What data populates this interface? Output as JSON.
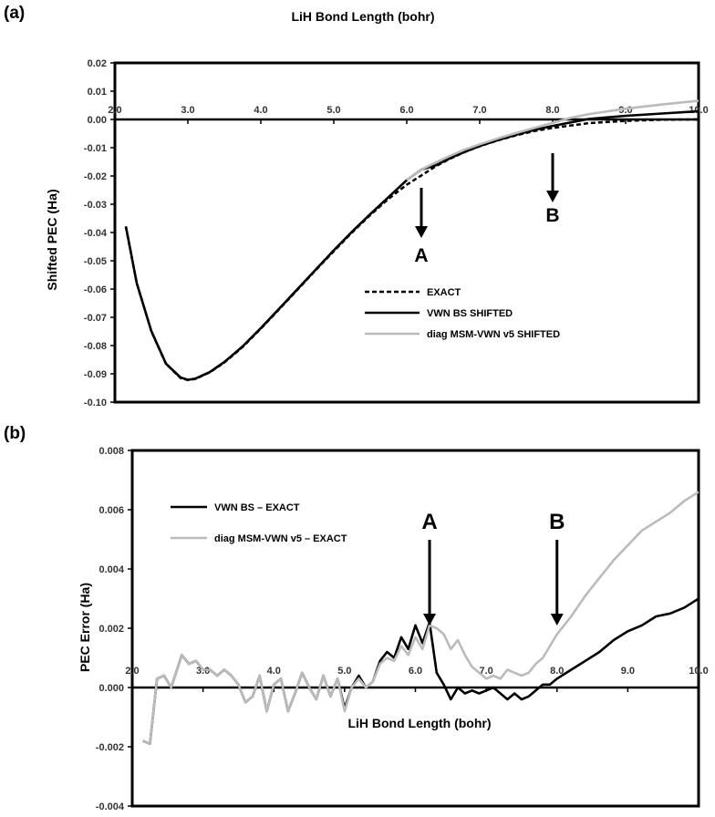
{
  "chart_data": [
    {
      "panel_label": "(a)",
      "type": "line",
      "x_axis_label": "LiH Bond Length (bohr)",
      "y_axis_label": "Shifted PEC (Ha)",
      "xlim": [
        2.0,
        10.0
      ],
      "ylim": [
        -0.1,
        0.02
      ],
      "x_ticks": [
        "2.0",
        "3.0",
        "4.0",
        "5.0",
        "6.0",
        "7.0",
        "8.0",
        "9.0",
        "10.0"
      ],
      "y_ticks": [
        "0.02",
        "0.01",
        "0.00",
        "-0.01",
        "-0.02",
        "-0.03",
        "-0.04",
        "-0.05",
        "-0.06",
        "-0.07",
        "-0.08",
        "-0.09",
        "-0.10"
      ],
      "legend": [
        "EXACT",
        "VWN BS SHIFTED",
        "diag MSM-VWN v5 SHIFTED"
      ],
      "series": [
        {
          "name": "EXACT",
          "style": "dashed",
          "color": "#000000",
          "x": [
            2.15,
            2.3,
            2.5,
            2.7,
            2.9,
            3.0,
            3.1,
            3.3,
            3.5,
            3.75,
            4.0,
            4.25,
            4.5,
            4.75,
            5.0,
            5.25,
            5.5,
            5.75,
            6.0,
            6.2,
            6.4,
            6.6,
            6.8,
            7.0,
            7.25,
            7.5,
            7.75,
            8.0,
            8.5,
            9.0,
            9.5,
            10.0
          ],
          "y": [
            -0.038,
            -0.058,
            -0.075,
            -0.0865,
            -0.0915,
            -0.0922,
            -0.0918,
            -0.0895,
            -0.086,
            -0.0805,
            -0.074,
            -0.0672,
            -0.0603,
            -0.0534,
            -0.0466,
            -0.04,
            -0.0338,
            -0.0281,
            -0.0231,
            -0.0198,
            -0.0165,
            -0.0138,
            -0.0115,
            -0.0095,
            -0.0074,
            -0.0056,
            -0.0041,
            -0.003,
            -0.0013,
            -0.0005,
            -0.0001,
            0.0
          ]
        },
        {
          "name": "VWN BS SHIFTED",
          "style": "solid",
          "color": "#000000",
          "x": [
            2.15,
            2.3,
            2.5,
            2.7,
            2.9,
            3.0,
            3.1,
            3.3,
            3.5,
            3.75,
            4.0,
            4.25,
            4.5,
            4.75,
            5.0,
            5.25,
            5.5,
            5.75,
            6.0,
            6.2,
            6.4,
            6.6,
            6.8,
            7.0,
            7.25,
            7.5,
            7.75,
            8.0,
            8.5,
            9.0,
            9.5,
            10.0
          ],
          "y": [
            -0.0378,
            -0.058,
            -0.0749,
            -0.0864,
            -0.0913,
            -0.0921,
            -0.0917,
            -0.0894,
            -0.0858,
            -0.0803,
            -0.0738,
            -0.067,
            -0.0601,
            -0.0532,
            -0.0463,
            -0.0397,
            -0.0335,
            -0.0275,
            -0.0215,
            -0.0177,
            -0.0162,
            -0.0136,
            -0.0114,
            -0.0094,
            -0.0073,
            -0.0054,
            -0.0037,
            -0.0023,
            0.0002,
            0.0013,
            0.0021,
            0.0029
          ]
        },
        {
          "name": "diag MSM-VWN v5 SHIFTED",
          "style": "solid",
          "color": "#bbbbbb",
          "x": [
            6.0,
            6.2,
            6.4,
            6.6,
            6.8,
            7.0,
            7.25,
            7.5,
            7.75,
            8.0,
            8.25,
            8.5,
            9.0,
            9.5,
            10.0
          ],
          "y": [
            -0.0215,
            -0.0177,
            -0.0152,
            -0.0128,
            -0.0106,
            -0.0088,
            -0.0067,
            -0.0048,
            -0.003,
            -0.0012,
            0.0006,
            0.0019,
            0.0038,
            0.0053,
            0.0066
          ]
        }
      ],
      "annotations": [
        {
          "text": "A",
          "x": 6.2
        },
        {
          "text": "B",
          "x": 8.0
        }
      ]
    },
    {
      "panel_label": "(b)",
      "type": "line",
      "x_axis_label": "LiH Bond Length (bohr)",
      "y_axis_label": "PEC Error (Ha)",
      "xlim": [
        2.0,
        10.0
      ],
      "ylim": [
        -0.004,
        0.008
      ],
      "x_ticks": [
        "2.0",
        "3.0",
        "4.0",
        "5.0",
        "6.0",
        "7.0",
        "8.0",
        "9.0",
        "10.0"
      ],
      "y_ticks": [
        "0.008",
        "0.006",
        "0.004",
        "0.002",
        "0.000",
        "-0.002",
        "-0.004"
      ],
      "legend": [
        "VWN BS – EXACT",
        "diag MSM-VWN v5 – EXACT"
      ],
      "series": [
        {
          "name": "VWN BS – EXACT",
          "style": "solid",
          "color": "#000000",
          "x": [
            2.15,
            2.25,
            2.35,
            2.45,
            2.55,
            2.7,
            2.8,
            2.9,
            3.0,
            3.1,
            3.2,
            3.3,
            3.4,
            3.5,
            3.6,
            3.7,
            3.8,
            3.9,
            4.0,
            4.1,
            4.2,
            4.3,
            4.4,
            4.5,
            4.6,
            4.7,
            4.8,
            4.9,
            5.0,
            5.1,
            5.2,
            5.3,
            5.4,
            5.5,
            5.6,
            5.7,
            5.8,
            5.9,
            6.0,
            6.1,
            6.2,
            6.3,
            6.4,
            6.5,
            6.6,
            6.7,
            6.8,
            6.9,
            7.0,
            7.1,
            7.2,
            7.3,
            7.4,
            7.5,
            7.6,
            7.7,
            7.8,
            7.9,
            8.0,
            8.2,
            8.4,
            8.6,
            8.8,
            9.0,
            9.2,
            9.4,
            9.6,
            9.8,
            10.0
          ],
          "y": [
            -0.0018,
            -0.0019,
            0.0003,
            0.0004,
            0.0,
            0.0011,
            0.0008,
            0.0009,
            0.0006,
            0.0006,
            0.0004,
            0.0006,
            0.0004,
            0.0001,
            -0.0005,
            -0.0003,
            0.0004,
            -0.0008,
            0.0001,
            0.0003,
            -0.0008,
            -0.0002,
            0.0005,
            0.0,
            -0.0004,
            0.0004,
            -0.0003,
            0.0003,
            -0.0007,
            0.0,
            0.0004,
            0.0,
            0.0002,
            0.0009,
            0.0012,
            0.001,
            0.0017,
            0.0013,
            0.0021,
            0.0015,
            0.0022,
            0.0005,
            0.0001,
            -0.0004,
            0.0,
            -0.0002,
            -0.0001,
            -0.0002,
            -0.0001,
            0.0,
            -0.0002,
            -0.0004,
            -0.0002,
            -0.0004,
            -0.0003,
            -0.0001,
            0.0001,
            0.0001,
            0.0003,
            0.0006,
            0.0009,
            0.0012,
            0.0016,
            0.0019,
            0.0021,
            0.0024,
            0.0025,
            0.0027,
            0.003
          ]
        },
        {
          "name": "diag MSM-VWN v5 – EXACT",
          "style": "solid",
          "color": "#bbbbbb",
          "x": [
            2.15,
            2.25,
            2.35,
            2.45,
            2.55,
            2.7,
            2.8,
            2.9,
            3.0,
            3.1,
            3.2,
            3.3,
            3.4,
            3.5,
            3.6,
            3.7,
            3.8,
            3.9,
            4.0,
            4.1,
            4.2,
            4.3,
            4.4,
            4.5,
            4.6,
            4.7,
            4.8,
            4.9,
            5.0,
            5.1,
            5.2,
            5.3,
            5.4,
            5.5,
            5.6,
            5.7,
            5.8,
            5.9,
            6.0,
            6.1,
            6.2,
            6.3,
            6.4,
            6.5,
            6.6,
            6.7,
            6.8,
            6.9,
            7.0,
            7.1,
            7.2,
            7.3,
            7.4,
            7.5,
            7.6,
            7.7,
            7.8,
            7.9,
            8.0,
            8.2,
            8.4,
            8.6,
            8.8,
            9.0,
            9.2,
            9.4,
            9.6,
            9.8,
            10.0
          ],
          "y": [
            -0.0018,
            -0.0019,
            0.0003,
            0.0004,
            0.0,
            0.0011,
            0.0008,
            0.0009,
            0.0006,
            0.0006,
            0.0004,
            0.0006,
            0.0004,
            0.0001,
            -0.0005,
            -0.0003,
            0.0004,
            -0.0008,
            0.0001,
            0.0003,
            -0.0008,
            -0.0002,
            0.0005,
            0.0,
            -0.0004,
            0.0004,
            -0.0003,
            0.0003,
            -0.0008,
            0.0,
            0.0003,
            0.0,
            0.0002,
            0.0008,
            0.001,
            0.0009,
            0.0014,
            0.0011,
            0.0017,
            0.0013,
            0.0021,
            0.002,
            0.0018,
            0.0013,
            0.0016,
            0.0011,
            0.0007,
            0.0005,
            0.0003,
            0.0004,
            0.0003,
            0.0006,
            0.0005,
            0.0004,
            0.0005,
            0.0008,
            0.001,
            0.0014,
            0.0018,
            0.0024,
            0.0031,
            0.0037,
            0.0043,
            0.0048,
            0.0053,
            0.0056,
            0.0059,
            0.0063,
            0.0066
          ]
        }
      ],
      "annotations": [
        {
          "text": "A",
          "x": 6.2
        },
        {
          "text": "B",
          "x": 8.0
        }
      ]
    }
  ]
}
